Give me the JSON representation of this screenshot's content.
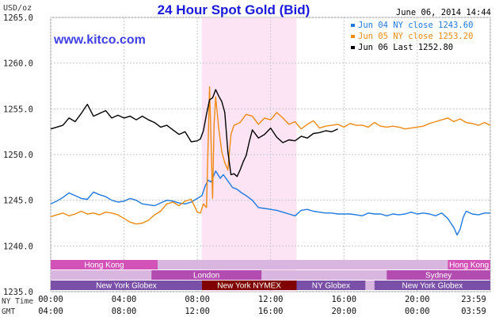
{
  "chart_data": {
    "type": "line",
    "title": "24 Hour Spot Gold (Bid)",
    "units": "USD/oz",
    "date": "June 06, 2014 14:44",
    "website": "www.kitco.com",
    "ylim": [
      1235.0,
      1265.0
    ],
    "y_ticks": [
      "1235.0",
      "1240.0",
      "1245.0",
      "1250.0",
      "1255.0",
      "1260.0",
      "1265.0"
    ],
    "y_tick_values": [
      1235,
      1240,
      1245,
      1250,
      1255,
      1260,
      1265
    ],
    "x_range_minutes": [
      0,
      1439
    ],
    "x_row_labels": [
      "NY Time",
      "GMT"
    ],
    "ny_time_ticks": [
      "00:00",
      "04:00",
      "08:00",
      "12:00",
      "16:00",
      "20:00",
      "23:59"
    ],
    "gmt_ticks": [
      "04:00",
      "08:00",
      "12:00",
      "16:00",
      "20:00",
      "00:00",
      "03:59"
    ],
    "tick_minutes": [
      0,
      240,
      480,
      720,
      960,
      1200,
      1439
    ],
    "highlight": {
      "start_min": 495,
      "end_min": 805,
      "color": "#fce4f4"
    },
    "series": [
      {
        "name": "Jun 04 NY close 1243.60",
        "color": "#1f7ae0",
        "x": [
          0,
          20,
          40,
          60,
          80,
          100,
          120,
          140,
          160,
          180,
          200,
          220,
          240,
          260,
          280,
          300,
          320,
          340,
          360,
          380,
          400,
          420,
          440,
          460,
          480,
          495,
          505,
          515,
          525,
          540,
          555,
          565,
          580,
          595,
          610,
          625,
          640,
          660,
          680,
          700,
          720,
          740,
          760,
          780,
          800,
          820,
          840,
          860,
          880,
          900,
          920,
          940,
          960,
          980,
          1000,
          1020,
          1040,
          1060,
          1080,
          1100,
          1120,
          1140,
          1160,
          1180,
          1200,
          1220,
          1240,
          1260,
          1280,
          1300,
          1310,
          1320,
          1330,
          1340,
          1350,
          1360,
          1380,
          1400,
          1420,
          1439
        ],
        "y": [
          1244.6,
          1244.9,
          1245.3,
          1245.8,
          1245.5,
          1245.2,
          1245.1,
          1245.9,
          1245.6,
          1245.4,
          1245.0,
          1244.8,
          1244.9,
          1245.2,
          1245.0,
          1244.6,
          1244.5,
          1244.4,
          1244.7,
          1245.0,
          1244.9,
          1244.7,
          1244.6,
          1244.8,
          1245.2,
          1245.5,
          1246.5,
          1247.2,
          1247.0,
          1248.2,
          1247.4,
          1247.8,
          1247.1,
          1246.4,
          1246.2,
          1245.8,
          1245.5,
          1245.0,
          1244.2,
          1244.1,
          1244.0,
          1243.9,
          1243.7,
          1243.5,
          1243.3,
          1243.9,
          1244.0,
          1243.8,
          1243.7,
          1243.6,
          1243.6,
          1243.5,
          1243.5,
          1243.5,
          1243.4,
          1243.3,
          1243.6,
          1243.5,
          1243.5,
          1243.3,
          1243.5,
          1243.4,
          1243.5,
          1243.7,
          1243.5,
          1243.6,
          1243.5,
          1243.3,
          1243.6,
          1243.0,
          1242.5,
          1242.0,
          1241.2,
          1241.8,
          1243.1,
          1243.8,
          1243.5,
          1243.4,
          1243.6,
          1243.6
        ]
      },
      {
        "name": "Jun 05 NY close 1253.20",
        "color": "#ee8a12",
        "x": [
          0,
          20,
          40,
          60,
          80,
          100,
          120,
          140,
          160,
          180,
          200,
          220,
          240,
          260,
          280,
          300,
          320,
          340,
          360,
          380,
          400,
          420,
          440,
          460,
          480,
          490,
          500,
          510,
          520,
          530,
          535,
          540,
          550,
          560,
          570,
          580,
          590,
          600,
          620,
          640,
          660,
          680,
          700,
          720,
          740,
          760,
          780,
          800,
          820,
          840,
          860,
          880,
          900,
          920,
          940,
          960,
          980,
          1000,
          1020,
          1040,
          1060,
          1080,
          1100,
          1120,
          1140,
          1160,
          1180,
          1200,
          1220,
          1240,
          1260,
          1280,
          1300,
          1320,
          1340,
          1360,
          1380,
          1400,
          1420,
          1439
        ],
        "y": [
          1243.2,
          1243.4,
          1243.6,
          1243.3,
          1243.5,
          1243.8,
          1243.5,
          1243.6,
          1243.4,
          1243.7,
          1243.6,
          1243.4,
          1243.0,
          1242.6,
          1242.4,
          1242.5,
          1242.8,
          1243.4,
          1243.8,
          1244.6,
          1244.8,
          1244.4,
          1244.9,
          1245.1,
          1243.7,
          1243.6,
          1244.6,
          1244.2,
          1257.4,
          1245.2,
          1253.4,
          1256.3,
          1252.9,
          1250.3,
          1249.1,
          1248.3,
          1252.2,
          1253.2,
          1253.5,
          1254.4,
          1254.2,
          1253.3,
          1254.0,
          1253.8,
          1254.6,
          1254.0,
          1253.3,
          1253.6,
          1252.8,
          1253.3,
          1253.7,
          1252.9,
          1253.1,
          1253.2,
          1253.3,
          1253.0,
          1253.4,
          1253.2,
          1253.2,
          1253.0,
          1253.5,
          1253.1,
          1253.0,
          1253.1,
          1253.0,
          1252.8,
          1252.9,
          1253.0,
          1253.1,
          1253.4,
          1253.6,
          1253.8,
          1254.0,
          1253.6,
          1253.9,
          1253.5,
          1253.4,
          1253.2,
          1253.5,
          1253.2
        ]
      },
      {
        "name": "Jun 06 Last 1252.80",
        "color": "#000000",
        "x": [
          0,
          20,
          40,
          60,
          80,
          100,
          120,
          140,
          160,
          180,
          200,
          220,
          240,
          260,
          280,
          300,
          320,
          340,
          360,
          380,
          400,
          420,
          440,
          460,
          480,
          490,
          500,
          510,
          520,
          530,
          540,
          550,
          560,
          570,
          580,
          590,
          600,
          610,
          620,
          630,
          640,
          650,
          660,
          680,
          700,
          720,
          740,
          760,
          780,
          800,
          820,
          840,
          860,
          880,
          900,
          920,
          940
        ],
        "y": [
          1252.8,
          1253.0,
          1253.2,
          1254.0,
          1253.6,
          1254.5,
          1255.5,
          1254.2,
          1254.5,
          1254.8,
          1254.0,
          1254.3,
          1254.0,
          1254.2,
          1253.8,
          1254.2,
          1253.8,
          1253.5,
          1253.0,
          1253.2,
          1252.7,
          1252.2,
          1252.5,
          1251.4,
          1251.5,
          1251.7,
          1252.6,
          1254.4,
          1256.0,
          1256.2,
          1257.1,
          1256.4,
          1255.8,
          1254.6,
          1250.3,
          1247.8,
          1247.9,
          1247.6,
          1248.3,
          1249.2,
          1249.9,
          1251.4,
          1252.7,
          1251.8,
          1252.2,
          1252.9,
          1251.9,
          1251.3,
          1251.6,
          1251.5,
          1252.0,
          1251.8,
          1252.3,
          1252.4,
          1252.6,
          1252.5,
          1252.8
        ]
      }
    ],
    "sessions": [
      {
        "row": 0,
        "label": "Hong Kong",
        "color": "#d352b8",
        "text_color": "#ffffff",
        "segments": [
          {
            "start": 0,
            "end": 350
          },
          {
            "start": 1300,
            "end": 1439
          }
        ]
      },
      {
        "row": 1,
        "label": "London",
        "color": "#b24cb0",
        "text_color": "#ffffff",
        "segments": [
          {
            "start": 330,
            "end": 690
          }
        ]
      },
      {
        "row": 1,
        "label": "Sydney",
        "color": "#b24cb0",
        "text_color": "#ffffff",
        "segments": [
          {
            "start": 1100,
            "end": 1439
          }
        ]
      },
      {
        "row": 2,
        "label": "New York Globex",
        "color": "#7a4fa8",
        "text_color": "#ffffff",
        "segments": [
          {
            "start": 0,
            "end": 495
          }
        ]
      },
      {
        "row": 2,
        "label": "New York NYMEX",
        "color": "#800000",
        "text_color": "#ffffff",
        "segments": [
          {
            "start": 495,
            "end": 805
          }
        ]
      },
      {
        "row": 2,
        "label": "NY Globex",
        "color": "#7a4fa8",
        "text_color": "#ffffff",
        "segments": [
          {
            "start": 805,
            "end": 1030
          }
        ]
      },
      {
        "row": 2,
        "label": "New York Globex",
        "color": "#7a4fa8",
        "text_color": "#ffffff",
        "segments": [
          {
            "start": 1060,
            "end": 1439
          }
        ]
      }
    ],
    "session_background": "#d9b6df",
    "grid": true,
    "legend_position": "top-right"
  }
}
